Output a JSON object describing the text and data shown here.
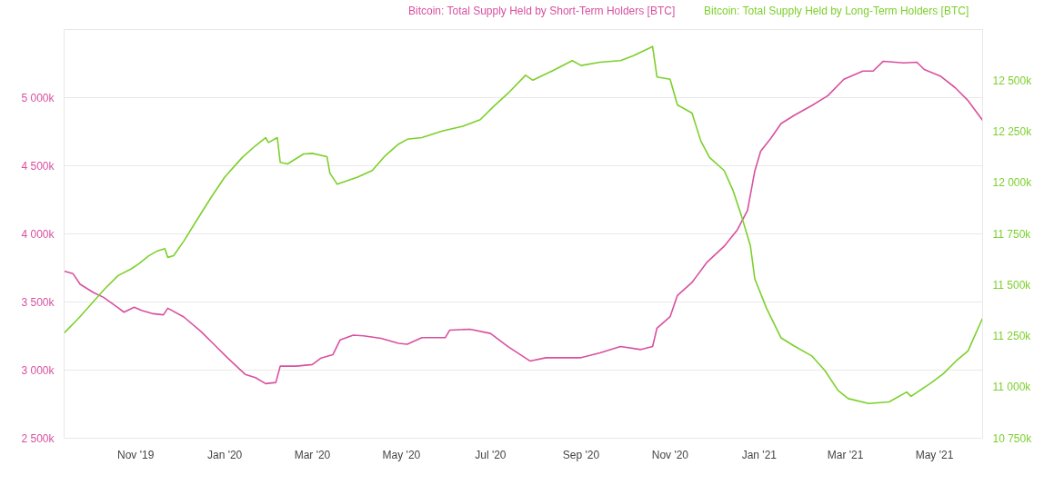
{
  "chart_data": {
    "type": "line",
    "x": [
      "2019-09-13",
      "2019-09-19",
      "2019-09-24",
      "2019-10-03",
      "2019-10-10",
      "2019-10-20",
      "2019-10-24",
      "2019-10-31",
      "2019-11-05",
      "2019-11-13",
      "2019-11-20",
      "2019-11-23",
      "2019-12-04",
      "2019-12-16",
      "2019-12-25",
      "2020-01-03",
      "2020-01-15",
      "2020-01-22",
      "2020-01-29",
      "2020-02-05",
      "2020-02-08",
      "2020-02-19",
      "2020-03-01",
      "2020-03-07",
      "2020-03-15",
      "2020-03-20",
      "2020-03-29",
      "2020-04-05",
      "2020-04-17",
      "2020-04-29",
      "2020-05-05",
      "2020-05-15",
      "2020-05-31",
      "2020-06-03",
      "2020-06-17",
      "2020-07-01",
      "2020-07-13",
      "2020-07-28",
      "2020-08-08",
      "2020-09-01",
      "2020-09-14",
      "2020-09-28",
      "2020-10-12",
      "2020-10-20",
      "2020-10-23",
      "2020-11-01",
      "2020-11-06",
      "2020-11-16",
      "2020-11-26",
      "2020-12-08",
      "2020-12-17",
      "2020-12-24",
      "2020-12-29",
      "2021-01-02",
      "2021-01-09",
      "2021-01-16",
      "2021-01-25",
      "2021-02-06",
      "2021-02-17",
      "2021-02-28",
      "2021-03-13",
      "2021-03-20",
      "2021-03-27",
      "2021-04-10",
      "2021-04-19",
      "2021-04-24",
      "2021-05-05",
      "2021-05-15",
      "2021-05-24",
      "2021-06-03"
    ],
    "series": [
      {
        "name": "Bitcoin: Total Supply Held by Short-Term Holders [BTC]",
        "color": "#d9509f",
        "values": [
          3726,
          3709,
          3630,
          3570,
          3534,
          3457,
          3425,
          3462,
          3438,
          3414,
          3406,
          3454,
          3390,
          3281,
          3185,
          3089,
          2969,
          2945,
          2901,
          2909,
          3029,
          3029,
          3041,
          3089,
          3113,
          3221,
          3257,
          3252,
          3233,
          3197,
          3190,
          3238,
          3238,
          3293,
          3300,
          3269,
          3173,
          3067,
          3091,
          3091,
          3127,
          3173,
          3151,
          3173,
          3308,
          3392,
          3548,
          3644,
          3789,
          3909,
          4029,
          4173,
          4462,
          4606,
          4702,
          4810,
          4870,
          4942,
          5014,
          5135,
          5195,
          5195,
          5267,
          5255,
          5260,
          5207,
          5159,
          5075,
          4979,
          4834
        ]
      },
      {
        "name": "Bitcoin: Total Supply Held by Long-Term Holders [BTC]",
        "color": "#7cd02b",
        "axis": "y2",
        "x": [
          "2019-09-13",
          "2019-09-23",
          "2019-10-02",
          "2019-10-11",
          "2019-10-20",
          "2019-10-29",
          "2019-11-03",
          "2019-11-10",
          "2019-11-16",
          "2019-11-21",
          "2019-11-23",
          "2019-11-27",
          "2019-12-04",
          "2019-12-13",
          "2019-12-23",
          "2020-01-01",
          "2020-01-13",
          "2020-01-22",
          "2020-01-29",
          "2020-01-31",
          "2020-02-06",
          "2020-02-08",
          "2020-02-13",
          "2020-02-24",
          "2020-03-01",
          "2020-03-11",
          "2020-03-13",
          "2020-03-18",
          "2020-04-01",
          "2020-04-11",
          "2020-04-20",
          "2020-04-29",
          "2020-05-05",
          "2020-05-15",
          "2020-05-29",
          "2020-06-12",
          "2020-06-24",
          "2020-07-03",
          "2020-07-13",
          "2020-07-25",
          "2020-07-30",
          "2020-08-13",
          "2020-08-26",
          "2020-09-01",
          "2020-09-14",
          "2020-09-28",
          "2020-10-07",
          "2020-10-20",
          "2020-10-23",
          "2020-11-01",
          "2020-11-06",
          "2020-11-16",
          "2020-11-22",
          "2020-11-28",
          "2020-12-08",
          "2020-12-14",
          "2020-12-20",
          "2020-12-26",
          "2020-12-29",
          "2021-01-06",
          "2021-01-16",
          "2021-01-25",
          "2021-02-06",
          "2021-02-15",
          "2021-02-24",
          "2021-03-03",
          "2021-03-17",
          "2021-03-31",
          "2021-04-12",
          "2021-04-15",
          "2021-04-28",
          "2021-05-07",
          "2021-05-16",
          "2021-05-24",
          "2021-06-03"
        ],
        "values": [
          11265,
          11338,
          11410,
          11482,
          11546,
          11579,
          11603,
          11643,
          11667,
          11678,
          11635,
          11643,
          11715,
          11819,
          11932,
          12028,
          12124,
          12181,
          12221,
          12197,
          12221,
          12100,
          12092,
          12141,
          12144,
          12128,
          12047,
          11993,
          12028,
          12060,
          12133,
          12189,
          12213,
          12221,
          12253,
          12277,
          12309,
          12373,
          12438,
          12526,
          12502,
          12550,
          12598,
          12574,
          12590,
          12598,
          12622,
          12667,
          12518,
          12507,
          12381,
          12341,
          12205,
          12124,
          12060,
          11964,
          11835,
          11691,
          11530,
          11386,
          11241,
          11201,
          11153,
          11081,
          10984,
          10944,
          10920,
          10928,
          10976,
          10955,
          11017,
          11065,
          11129,
          11177,
          11338
        ]
      }
    ],
    "xlim": [
      "2019-09-13",
      "2021-06-03"
    ],
    "xticks": [
      {
        "value": "2019-11-01",
        "label": "Nov '19"
      },
      {
        "value": "2020-01-01",
        "label": "Jan '20"
      },
      {
        "value": "2020-03-01",
        "label": "Mar '20"
      },
      {
        "value": "2020-05-01",
        "label": "May '20"
      },
      {
        "value": "2020-07-01",
        "label": "Jul '20"
      },
      {
        "value": "2020-09-01",
        "label": "Sep '20"
      },
      {
        "value": "2020-11-01",
        "label": "Nov '20"
      },
      {
        "value": "2021-01-01",
        "label": "Jan '21"
      },
      {
        "value": "2021-03-01",
        "label": "Mar '21"
      },
      {
        "value": "2021-05-01",
        "label": "May '21"
      }
    ],
    "ylim": [
      2500,
      5500
    ],
    "yticks": [
      {
        "value": 2500,
        "label": "2 500k"
      },
      {
        "value": 3000,
        "label": "3 000k"
      },
      {
        "value": 3500,
        "label": "3 500k"
      },
      {
        "value": 4000,
        "label": "4 000k"
      },
      {
        "value": 4500,
        "label": "4 500k"
      },
      {
        "value": 5000,
        "label": "5 000k"
      },
      {
        "value": 5500,
        "label": null
      }
    ],
    "y2lim": [
      10750,
      12750
    ],
    "y2ticks": [
      {
        "value": 10750,
        "label": "10 750k"
      },
      {
        "value": 11000,
        "label": "11 000k"
      },
      {
        "value": 11250,
        "label": "11 250k"
      },
      {
        "value": 11500,
        "label": "11 500k"
      },
      {
        "value": 11750,
        "label": "11 750k"
      },
      {
        "value": 12000,
        "label": "12 000k"
      },
      {
        "value": 12250,
        "label": "12 250k"
      },
      {
        "value": 12500,
        "label": "12 500k"
      }
    ],
    "grid": "y",
    "legend": "top right"
  }
}
